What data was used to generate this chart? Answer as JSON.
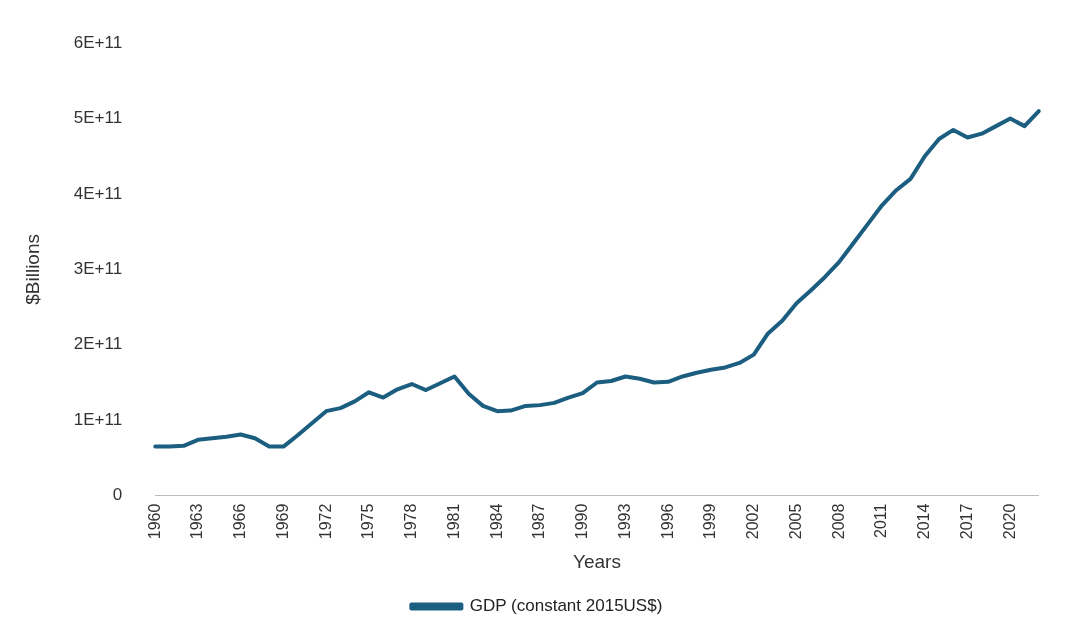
{
  "chart_data": {
    "type": "line",
    "xlabel": "Years",
    "ylabel": "$Billions",
    "categories": [
      "1960",
      null,
      null,
      "1963",
      null,
      null,
      "1966",
      null,
      null,
      "1969",
      null,
      null,
      "1972",
      null,
      null,
      "1975",
      null,
      null,
      "1978",
      null,
      null,
      "1981",
      null,
      null,
      "1984",
      null,
      null,
      "1987",
      null,
      null,
      "1990",
      null,
      null,
      "1993",
      null,
      null,
      "1996",
      null,
      null,
      "1999",
      null,
      null,
      "2002",
      null,
      null,
      "2005",
      null,
      null,
      "2008",
      null,
      null,
      "2011",
      null,
      null,
      "2014",
      null,
      null,
      "2017",
      null,
      null,
      "2020",
      null,
      null
    ],
    "series": [
      {
        "name": "GDP (constant 2015US$)",
        "color": "#1b5e80",
        "values": [
          65000000000.0,
          65000000000.0,
          66000000000.0,
          74000000000.0,
          76000000000.0,
          78000000000.0,
          81000000000.0,
          76000000000.0,
          65000000000.0,
          65000000000.0,
          80000000000.0,
          96000000000.0,
          112000000000.0,
          116000000000.0,
          125000000000.0,
          137000000000.0,
          130000000000.0,
          141000000000.0,
          148000000000.0,
          140000000000.0,
          149000000000.0,
          158000000000.0,
          135000000000.0,
          119000000000.0,
          112000000000.0,
          113000000000.0,
          119000000000.0,
          120000000000.0,
          123000000000.0,
          130000000000.0,
          136000000000.0,
          150000000000.0,
          152000000000.0,
          158000000000.0,
          155000000000.0,
          150000000000.0,
          151000000000.0,
          158000000000.0,
          163000000000.0,
          167000000000.0,
          170000000000.0,
          176000000000.0,
          187000000000.0,
          215000000000.0,
          232000000000.0,
          255000000000.0,
          272000000000.0,
          290000000000.0,
          310000000000.0,
          335000000000.0,
          360000000000.0,
          385000000000.0,
          405000000000.0,
          420000000000.0,
          450000000000.0,
          473000000000.0,
          485000000000.0,
          475000000000.0,
          480000000000.0,
          490000000000.0,
          500000000000.0,
          490000000000.0,
          510000000000.0
        ]
      }
    ],
    "ylim": [
      0,
      600000000000.0
    ],
    "yticks": [
      0,
      {
        "value": 100000000000.0,
        "label": "1E+11"
      },
      {
        "value": 200000000000.0,
        "label": "2E+11"
      },
      {
        "value": 300000000000.0,
        "label": "3E+11"
      },
      {
        "value": 400000000000.0,
        "label": "4E+11"
      },
      {
        "value": 500000000000.0,
        "label": "5E+11"
      },
      {
        "value": 600000000000.0,
        "label": "6E+11"
      }
    ],
    "grid": false,
    "legend": "bottom",
    "marker": "none",
    "line_style": "solid"
  }
}
